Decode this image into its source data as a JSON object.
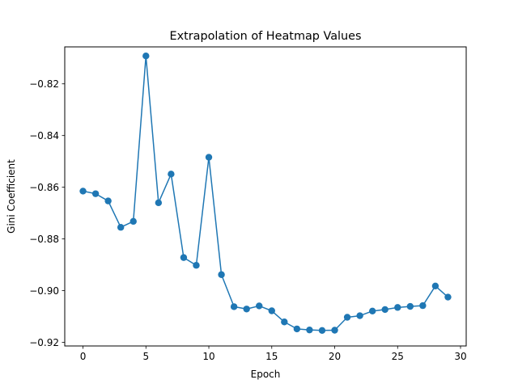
{
  "chart_data": {
    "type": "line",
    "title": "Extrapolation of Heatmap Values",
    "xlabel": "Epoch",
    "ylabel": "Gini Coefficient",
    "xlim": [
      -1.45,
      30.45
    ],
    "ylim": [
      -0.9214,
      -0.8057
    ],
    "xticks": [
      0,
      5,
      10,
      15,
      20,
      25,
      30
    ],
    "yticks": [
      -0.92,
      -0.9,
      -0.88,
      -0.86,
      -0.84,
      -0.82
    ],
    "xtick_labels": [
      "0",
      "5",
      "10",
      "15",
      "20",
      "25",
      "30"
    ],
    "ytick_labels": [
      "−0.92",
      "−0.90",
      "−0.88",
      "−0.86",
      "−0.84",
      "−0.82"
    ],
    "grid": false,
    "series": [
      {
        "color": "#1f77b4",
        "marker": "circle",
        "x": [
          0,
          1,
          2,
          3,
          4,
          5,
          6,
          7,
          8,
          9,
          10,
          11,
          12,
          13,
          14,
          15,
          16,
          17,
          18,
          19,
          20,
          21,
          22,
          23,
          24,
          25,
          26,
          27,
          28,
          29
        ],
        "y": [
          -0.8615,
          -0.8625,
          -0.8653,
          -0.8755,
          -0.8732,
          -0.8092,
          -0.866,
          -0.8549,
          -0.8872,
          -0.8902,
          -0.8484,
          -0.8938,
          -0.9062,
          -0.9071,
          -0.9059,
          -0.9078,
          -0.9121,
          -0.9148,
          -0.9152,
          -0.9154,
          -0.9153,
          -0.9103,
          -0.9097,
          -0.9079,
          -0.9073,
          -0.9065,
          -0.9061,
          -0.9058,
          -0.8982,
          -0.9025
        ]
      }
    ]
  }
}
